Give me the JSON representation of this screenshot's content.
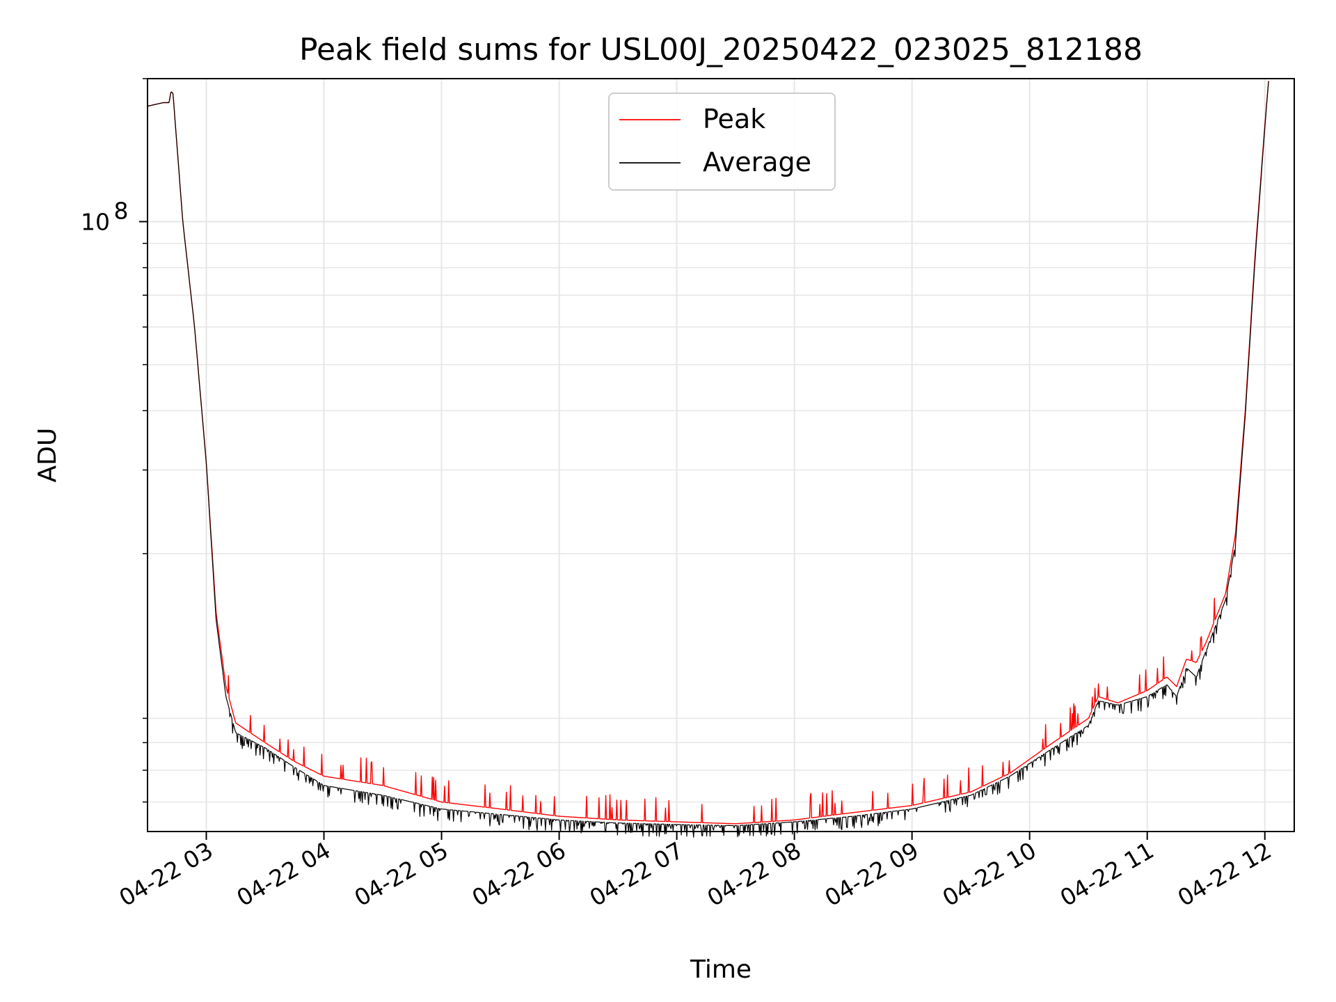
{
  "chart_data": {
    "type": "line",
    "title": "Peak field sums for USL00J_20250422_023025_812188",
    "xlabel": "Time",
    "ylabel": "ADU",
    "y_scale": "log",
    "ylim": [
      5200000,
      200000000
    ],
    "xlim": [
      "2025-04-22 02:30",
      "2025-04-22 12:15"
    ],
    "x_ticks": [
      "04-22 03",
      "04-22 04",
      "04-22 05",
      "04-22 06",
      "04-22 07",
      "04-22 08",
      "04-22 09",
      "04-22 10",
      "04-22 11",
      "04-22 12"
    ],
    "y_tick_labels": [
      {
        "base": "10",
        "exp": "8",
        "value": 100000000
      }
    ],
    "grid": true,
    "legend_position": "upper center",
    "colors": {
      "Peak": "#ff0000",
      "Average": "#000000"
    },
    "series": [
      {
        "name": "Peak",
        "color": "#ff0000",
        "points": [
          [
            "2025-04-22 02:30",
            175000000
          ],
          [
            "2025-04-22 02:38",
            178000000
          ],
          [
            "2025-04-22 02:41",
            178000000
          ],
          [
            "2025-04-22 02:42",
            188000000
          ],
          [
            "2025-04-22 02:43",
            186000000
          ],
          [
            "2025-04-22 02:48",
            100000000
          ],
          [
            "2025-04-22 02:54",
            60000000
          ],
          [
            "2025-04-22 03:00",
            31000000
          ],
          [
            "2025-04-22 03:05",
            15000000
          ],
          [
            "2025-04-22 03:10",
            10500000
          ],
          [
            "2025-04-22 03:15",
            8800000
          ],
          [
            "2025-04-22 03:30",
            8000000
          ],
          [
            "2025-04-22 03:45",
            7300000
          ],
          [
            "2025-04-22 04:00",
            6800000
          ],
          [
            "2025-04-22 04:30",
            6500000
          ],
          [
            "2025-04-22 05:00",
            6000000
          ],
          [
            "2025-04-22 05:30",
            5800000
          ],
          [
            "2025-04-22 06:00",
            5600000
          ],
          [
            "2025-04-22 06:30",
            5500000
          ],
          [
            "2025-04-22 07:00",
            5450000
          ],
          [
            "2025-04-22 07:30",
            5400000
          ],
          [
            "2025-04-22 08:00",
            5500000
          ],
          [
            "2025-04-22 08:30",
            5700000
          ],
          [
            "2025-04-22 09:00",
            5900000
          ],
          [
            "2025-04-22 09:30",
            6300000
          ],
          [
            "2025-04-22 09:50",
            6900000
          ],
          [
            "2025-04-22 10:10",
            7900000
          ],
          [
            "2025-04-22 10:30",
            9000000
          ],
          [
            "2025-04-22 10:35",
            10000000
          ],
          [
            "2025-04-22 10:45",
            9700000
          ],
          [
            "2025-04-22 11:00",
            10300000
          ],
          [
            "2025-04-22 11:10",
            11000000
          ],
          [
            "2025-04-22 11:15",
            10500000
          ],
          [
            "2025-04-22 11:20",
            12000000
          ],
          [
            "2025-04-22 11:25",
            11800000
          ],
          [
            "2025-04-22 11:30",
            13000000
          ],
          [
            "2025-04-22 11:40",
            16500000
          ],
          [
            "2025-04-22 11:45",
            22000000
          ],
          [
            "2025-04-22 11:50",
            40000000
          ],
          [
            "2025-04-22 11:55",
            85000000
          ],
          [
            "2025-04-22 12:00",
            160000000
          ],
          [
            "2025-04-22 12:02",
            200000000
          ]
        ]
      },
      {
        "name": "Average",
        "color": "#000000",
        "points": [
          [
            "2025-04-22 02:30",
            175000000
          ],
          [
            "2025-04-22 02:38",
            178000000
          ],
          [
            "2025-04-22 02:41",
            178000000
          ],
          [
            "2025-04-22 02:42",
            188000000
          ],
          [
            "2025-04-22 02:43",
            186000000
          ],
          [
            "2025-04-22 02:48",
            100000000
          ],
          [
            "2025-04-22 02:54",
            60000000
          ],
          [
            "2025-04-22 03:00",
            31000000
          ],
          [
            "2025-04-22 03:05",
            14500000
          ],
          [
            "2025-04-22 03:10",
            10000000
          ],
          [
            "2025-04-22 03:15",
            8400000
          ],
          [
            "2025-04-22 03:30",
            7800000
          ],
          [
            "2025-04-22 03:45",
            7100000
          ],
          [
            "2025-04-22 04:00",
            6500000
          ],
          [
            "2025-04-22 04:30",
            6200000
          ],
          [
            "2025-04-22 05:00",
            5800000
          ],
          [
            "2025-04-22 05:30",
            5650000
          ],
          [
            "2025-04-22 06:00",
            5500000
          ],
          [
            "2025-04-22 06:30",
            5420000
          ],
          [
            "2025-04-22 07:00",
            5380000
          ],
          [
            "2025-04-22 07:30",
            5350000
          ],
          [
            "2025-04-22 08:00",
            5450000
          ],
          [
            "2025-04-22 08:30",
            5600000
          ],
          [
            "2025-04-22 09:00",
            5800000
          ],
          [
            "2025-04-22 09:30",
            6200000
          ],
          [
            "2025-04-22 09:50",
            6800000
          ],
          [
            "2025-04-22 10:10",
            7700000
          ],
          [
            "2025-04-22 10:30",
            8700000
          ],
          [
            "2025-04-22 10:35",
            9800000
          ],
          [
            "2025-04-22 10:45",
            9600000
          ],
          [
            "2025-04-22 11:00",
            10000000
          ],
          [
            "2025-04-22 11:10",
            10600000
          ],
          [
            "2025-04-22 11:15",
            10000000
          ],
          [
            "2025-04-22 11:20",
            11500000
          ],
          [
            "2025-04-22 11:25",
            11000000
          ],
          [
            "2025-04-22 11:30",
            12500000
          ],
          [
            "2025-04-22 11:40",
            16000000
          ],
          [
            "2025-04-22 11:45",
            21000000
          ],
          [
            "2025-04-22 11:50",
            39000000
          ],
          [
            "2025-04-22 11:55",
            83000000
          ],
          [
            "2025-04-22 12:00",
            158000000
          ],
          [
            "2025-04-22 12:02",
            200000000
          ]
        ]
      }
    ]
  }
}
